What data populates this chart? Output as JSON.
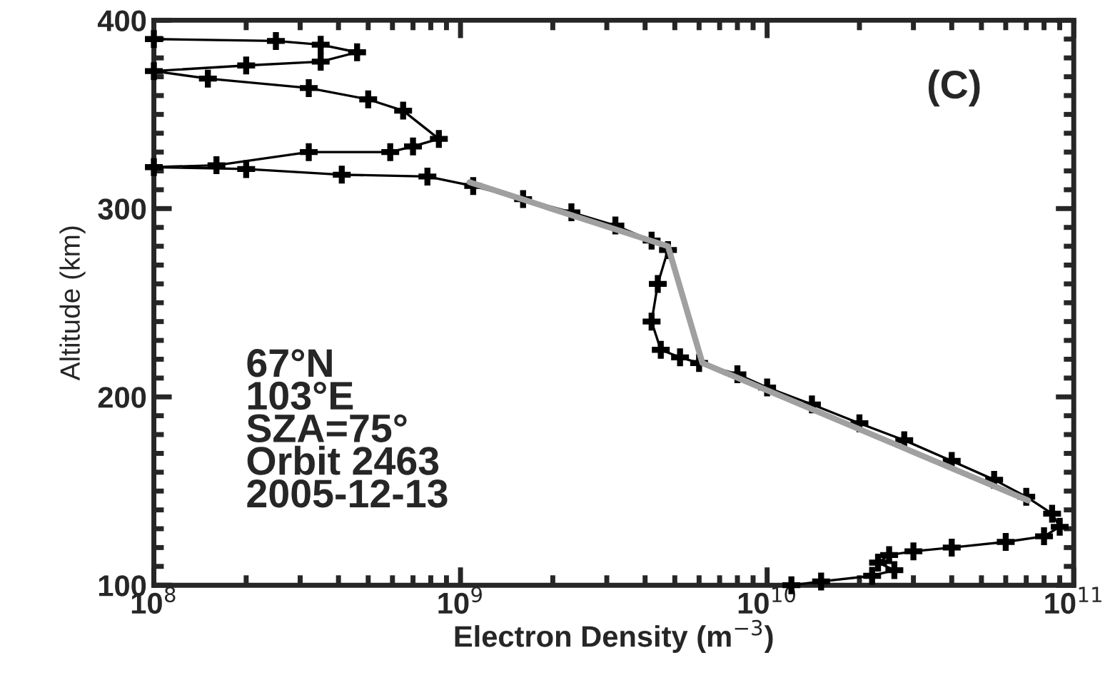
{
  "chart_data": {
    "type": "line",
    "xlabel": "Electron Density (m$^{−3}$)",
    "ylabel": "Altitude (km)",
    "log": "x",
    "xlim": [
      100000000.0,
      100000000000.0
    ],
    "xticks": [
      {
        "value": 100000000.0,
        "label": "10$^{8}$"
      },
      {
        "value": 1000000000.0,
        "label": "10$^{9}$"
      },
      {
        "value": 10000000000.0,
        "label": "10$^{10}$"
      },
      {
        "value": 100000000000.0,
        "label": "10$^{11}$"
      }
    ],
    "ylim": [
      100,
      400
    ],
    "yticks": [
      100,
      200,
      300,
      400
    ],
    "grid": false,
    "legend": false,
    "annotations": [
      "(C)",
      "67°N\n103°E\nSZA=75°\nOrbit 2463\n2005-12-13"
    ],
    "series": [
      {
        "color": "#000000",
        "marker": "cross",
        "line_style": "solid",
        "x": [
          100000000.0,
          250000000.0,
          350000000.0,
          460000000.0,
          350000000.0,
          200000000.0,
          100000000.0,
          150000000.0,
          320000000.0,
          500000000.0,
          650000000.0,
          850000000.0,
          700000000.0,
          590000000.0,
          320000000.0,
          160000000.0,
          100000000.0,
          200000000.0,
          410000000.0,
          780000000.0,
          1100000000.0,
          1600000000.0,
          2300000000.0,
          3200000000.0,
          4200000000.0,
          4750000000.0,
          4400000000.0,
          4200000000.0,
          4500000000.0,
          5200000000.0,
          6000000000.0,
          8000000000.0,
          10000000000.0,
          14000000000.0,
          20000000000.0,
          28000000000.0,
          40000000000.0,
          55000000000.0,
          70000000000.0,
          85000000000.0,
          90000000000.0,
          80000000000.0,
          60000000000.0,
          40000000000.0,
          30000000000.0,
          25000000000.0,
          23000000000.0,
          26000000000.0,
          22000000000.0,
          15000000000.0,
          12000000000.0
        ],
        "values": [
          390,
          389,
          387,
          383,
          378,
          376,
          373,
          369,
          364,
          358,
          352,
          337,
          333,
          330,
          330,
          323,
          322,
          321,
          318,
          317,
          312,
          305,
          298,
          291,
          283,
          278,
          260,
          240,
          225,
          221,
          218,
          212,
          205,
          196,
          186,
          177,
          166,
          156,
          147,
          138,
          131,
          126,
          123,
          120,
          118,
          116,
          112,
          108,
          105,
          102,
          100
        ]
      },
      {
        "type": "line",
        "color": "#a0a0a0",
        "marker": "none",
        "line_style": "solid",
        "x": [
          1070000000.0,
          4750000000.0,
          6150000000.0,
          71000000000.0
        ],
        "values": [
          314,
          280,
          218,
          145
        ]
      }
    ]
  }
}
